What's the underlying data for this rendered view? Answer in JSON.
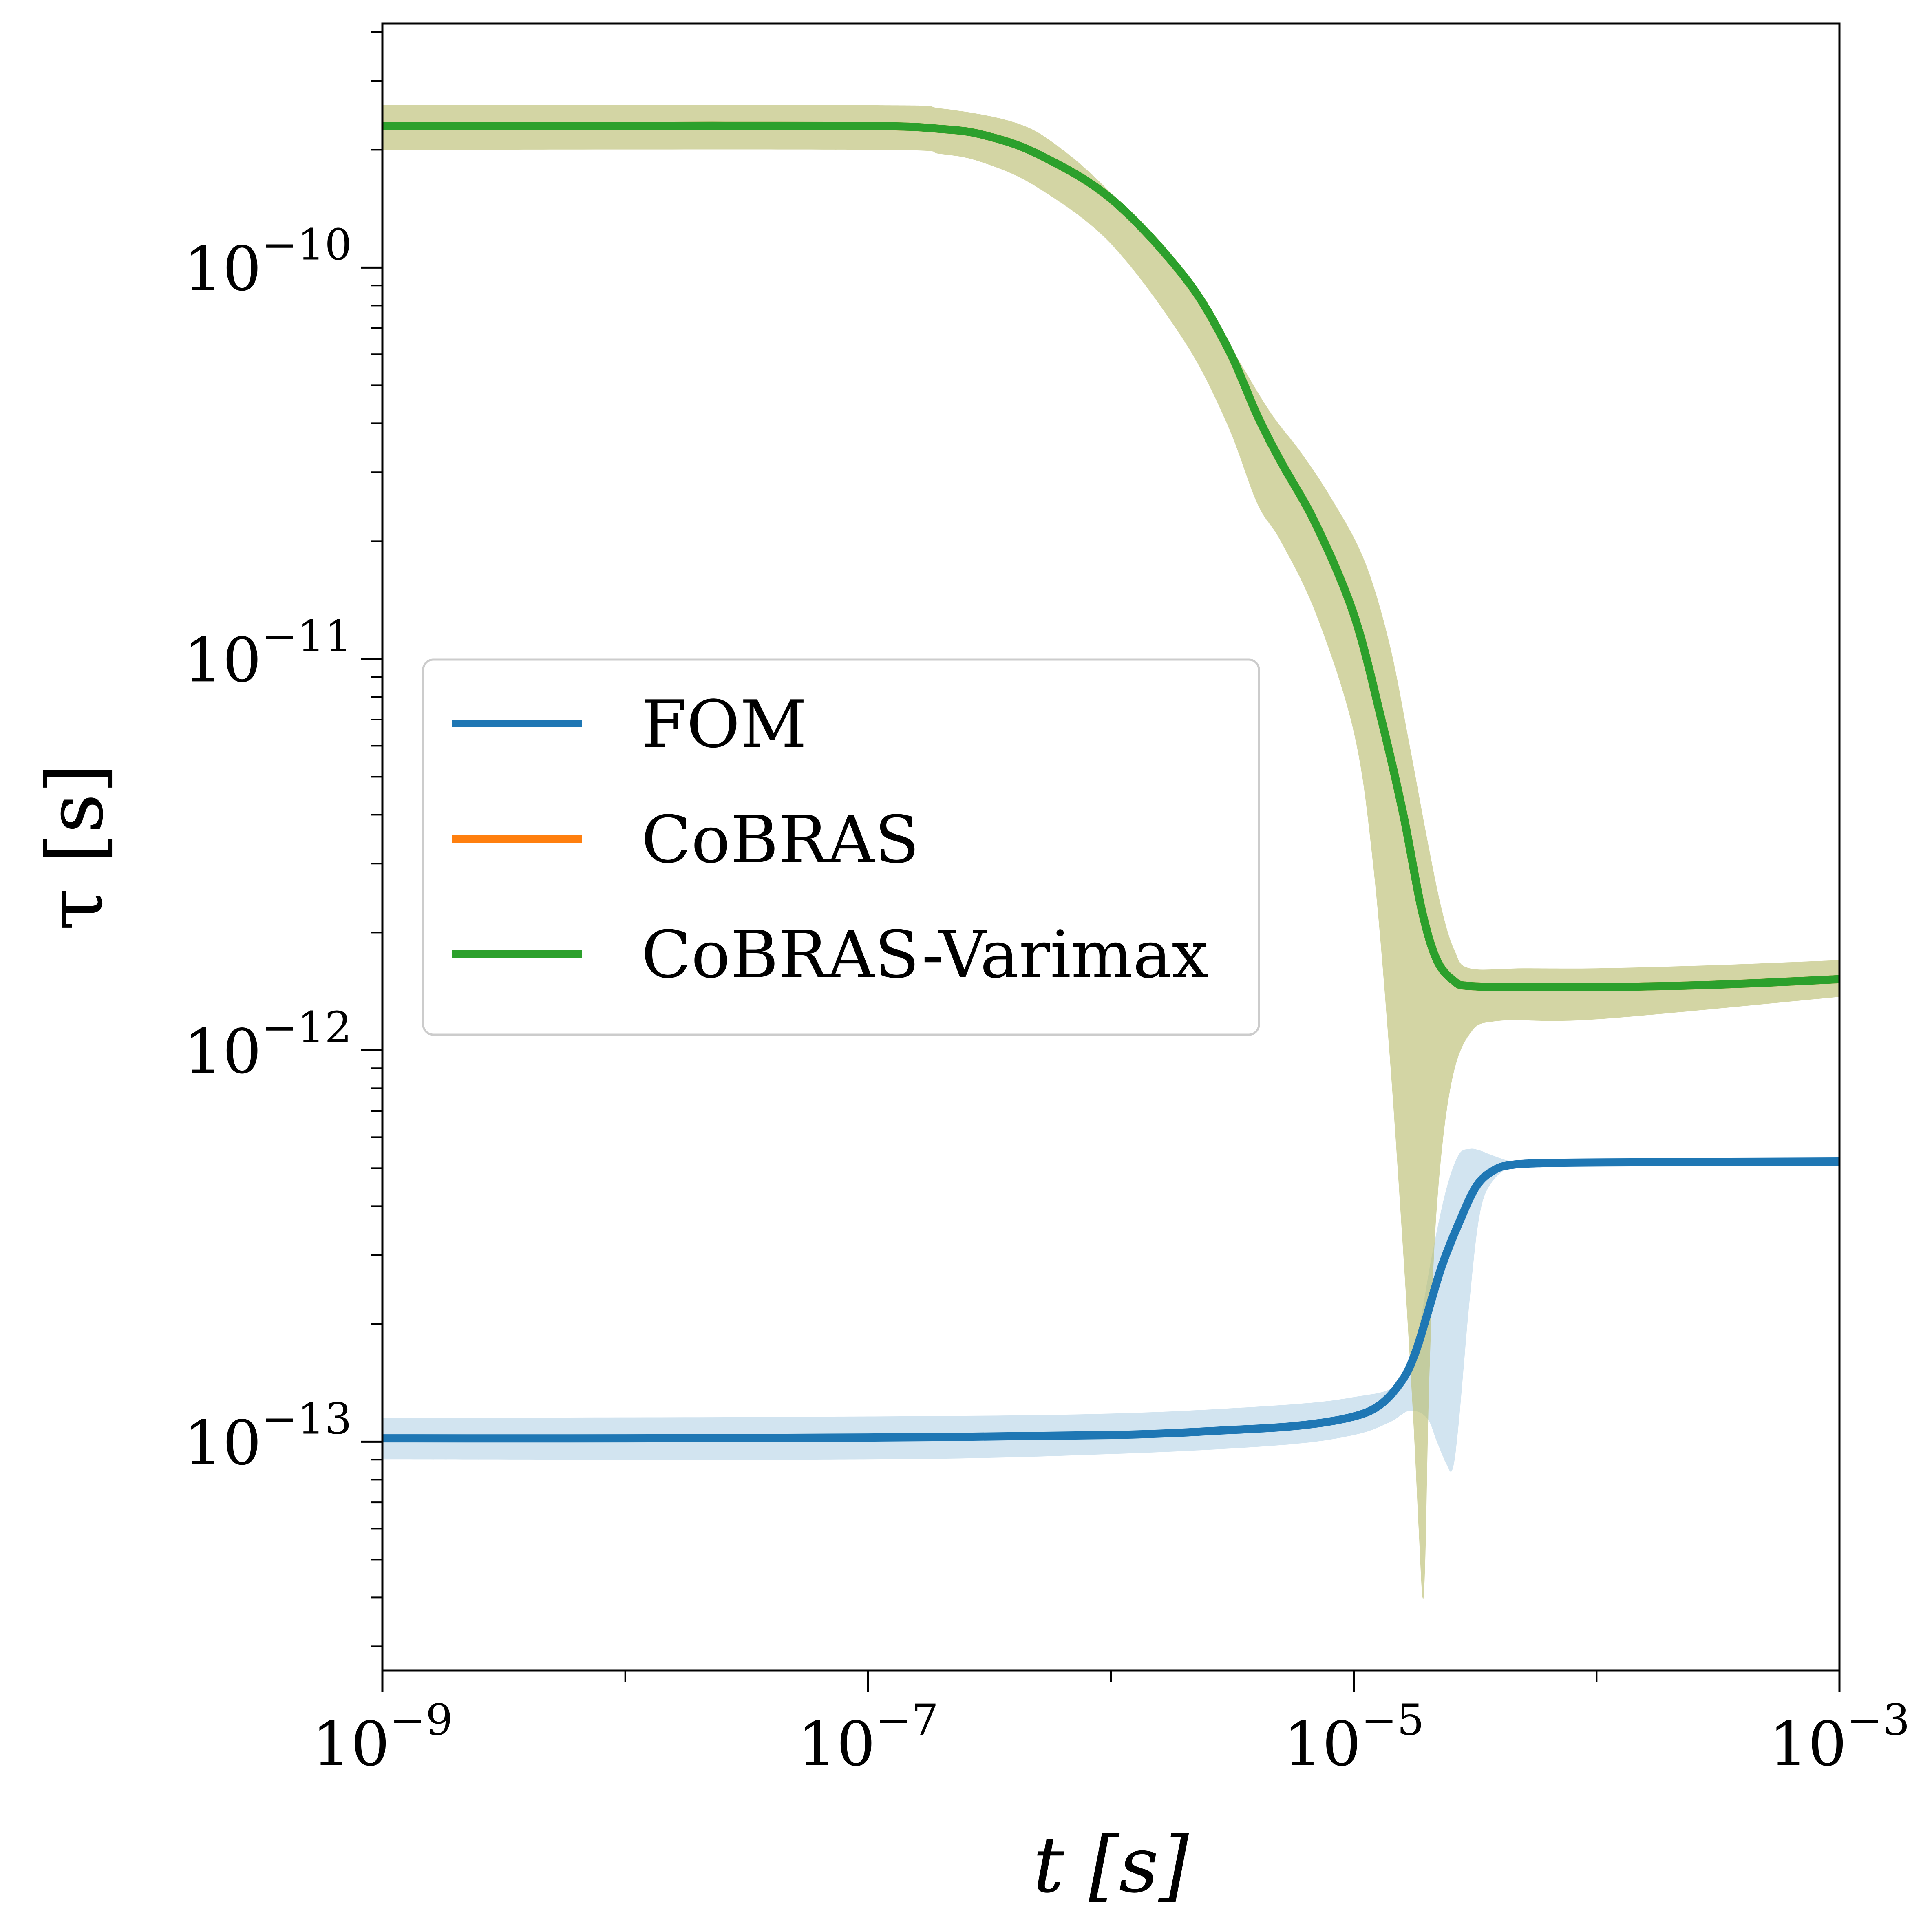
{
  "chart_data": {
    "type": "line",
    "title": "",
    "xlabel": "t [s]",
    "ylabel": "τ [s]",
    "xscale": "log",
    "yscale": "log",
    "xlim": [
      1e-09,
      0.001
    ],
    "ylim": [
      2.6e-14,
      4.2e-10
    ],
    "x_ticks": [
      {
        "value": 1e-09,
        "mantissa": "10",
        "exp": "−9"
      },
      {
        "value": 1e-07,
        "mantissa": "10",
        "exp": "−7"
      },
      {
        "value": 1e-05,
        "mantissa": "10",
        "exp": "−5"
      },
      {
        "value": 0.001,
        "mantissa": "10",
        "exp": "−3"
      }
    ],
    "y_ticks": [
      {
        "value": 1e-13,
        "mantissa": "10",
        "exp": "−13"
      },
      {
        "value": 1e-12,
        "mantissa": "10",
        "exp": "−12"
      },
      {
        "value": 1e-11,
        "mantissa": "10",
        "exp": "−11"
      },
      {
        "value": 1e-10,
        "mantissa": "10",
        "exp": "−10"
      }
    ],
    "grid": false,
    "legend": "center-left",
    "series": [
      {
        "name": "FOM",
        "color": "#1f77b4",
        "points": [
          [
            1e-09,
            1.02e-13
          ],
          [
            1e-08,
            1.02e-13
          ],
          [
            1e-07,
            1.025e-13
          ],
          [
            1e-06,
            1.04e-13
          ],
          [
            3e-06,
            1.07e-13
          ],
          [
            6e-06,
            1.1e-13
          ],
          [
            1e-05,
            1.16e-13
          ],
          [
            1.3e-05,
            1.25e-13
          ],
          [
            1.6e-05,
            1.45e-13
          ],
          [
            1.8e-05,
            1.7e-13
          ],
          [
            2e-05,
            2.1e-13
          ],
          [
            2.3e-05,
            2.8e-13
          ],
          [
            2.7e-05,
            3.6e-13
          ],
          [
            3.2e-05,
            4.5e-13
          ],
          [
            3.8e-05,
            4.95e-13
          ],
          [
            4.5e-05,
            5.1e-13
          ],
          [
            6e-05,
            5.15e-13
          ],
          [
            0.0001,
            5.17e-13
          ],
          [
            0.001,
            5.2e-13
          ]
        ],
        "band": {
          "color": "#1f77b4",
          "lower": [
            [
              1e-09,
              9e-14
            ],
            [
              1e-07,
              9e-14
            ],
            [
              1e-06,
              9.3e-14
            ],
            [
              5e-06,
              9.8e-14
            ],
            [
              1e-05,
              1.04e-13
            ],
            [
              1.4e-05,
              1.12e-13
            ],
            [
              1.7e-05,
              1.2e-13
            ],
            [
              2e-05,
              1.15e-13
            ],
            [
              2.2e-05,
              1e-13
            ],
            [
              2.4e-05,
              8.8e-14
            ],
            [
              2.55e-05,
              8.5e-14
            ],
            [
              2.7e-05,
              1.1e-13
            ],
            [
              3e-05,
              2.3e-13
            ],
            [
              3.3e-05,
              3.8e-13
            ],
            [
              3.7e-05,
              4.6e-13
            ],
            [
              4.5e-05,
              5.05e-13
            ],
            [
              6e-05,
              5.15e-13
            ]
          ],
          "upper": [
            [
              6e-05,
              5.15e-13
            ],
            [
              4.5e-05,
              5.2e-13
            ],
            [
              3.7e-05,
              5.4e-13
            ],
            [
              3.3e-05,
              5.55e-13
            ],
            [
              3e-05,
              5.6e-13
            ],
            [
              2.7e-05,
              5.4e-13
            ],
            [
              2.4e-05,
              4.4e-13
            ],
            [
              2.1e-05,
              3e-13
            ],
            [
              1.8e-05,
              1.8e-13
            ],
            [
              1.5e-05,
              1.4e-13
            ],
            [
              1e-05,
              1.3e-13
            ],
            [
              5e-06,
              1.24e-13
            ],
            [
              1e-06,
              1.18e-13
            ],
            [
              1e-07,
              1.16e-13
            ],
            [
              1e-09,
              1.15e-13
            ]
          ]
        }
      },
      {
        "name": "CoBRAS",
        "color": "#ff7f0e",
        "points": [
          [
            1e-09,
            2.3e-10
          ],
          [
            1e-08,
            2.3e-10
          ],
          [
            1e-07,
            2.3e-10
          ],
          [
            2e-07,
            2.26e-10
          ],
          [
            3e-07,
            2.18e-10
          ],
          [
            5e-07,
            1.95e-10
          ],
          [
            1e-06,
            1.5e-10
          ],
          [
            2e-06,
            9.5e-11
          ],
          [
            3e-06,
            6.3e-11
          ],
          [
            4e-06,
            4.2e-11
          ],
          [
            5e-06,
            3.2e-11
          ],
          [
            7e-06,
            2.2e-11
          ],
          [
            1e-05,
            1.3e-11
          ],
          [
            1.3e-05,
            7e-12
          ],
          [
            1.6e-05,
            4e-12
          ],
          [
            1.9e-05,
            2.3e-12
          ],
          [
            2.2e-05,
            1.7e-12
          ],
          [
            2.6e-05,
            1.5e-12
          ],
          [
            3e-05,
            1.46e-12
          ],
          [
            5e-05,
            1.45e-12
          ],
          [
            0.0001,
            1.45e-12
          ],
          [
            0.0003,
            1.47e-12
          ],
          [
            0.001,
            1.52e-12
          ]
        ]
      },
      {
        "name": "CoBRAS-Varimax",
        "color": "#2ca02c",
        "points": [
          [
            1e-09,
            2.3e-10
          ],
          [
            1e-08,
            2.3e-10
          ],
          [
            1e-07,
            2.3e-10
          ],
          [
            2e-07,
            2.26e-10
          ],
          [
            3e-07,
            2.18e-10
          ],
          [
            5e-07,
            1.95e-10
          ],
          [
            1e-06,
            1.5e-10
          ],
          [
            2e-06,
            9.5e-11
          ],
          [
            3e-06,
            6.3e-11
          ],
          [
            4e-06,
            4.2e-11
          ],
          [
            5e-06,
            3.2e-11
          ],
          [
            7e-06,
            2.2e-11
          ],
          [
            1e-05,
            1.3e-11
          ],
          [
            1.3e-05,
            7e-12
          ],
          [
            1.6e-05,
            4e-12
          ],
          [
            1.9e-05,
            2.3e-12
          ],
          [
            2.2e-05,
            1.7e-12
          ],
          [
            2.6e-05,
            1.5e-12
          ],
          [
            3e-05,
            1.46e-12
          ],
          [
            5e-05,
            1.45e-12
          ],
          [
            0.0001,
            1.45e-12
          ],
          [
            0.0003,
            1.47e-12
          ],
          [
            0.001,
            1.52e-12
          ]
        ],
        "band": {
          "color": "#bcbf73",
          "lower": [
            [
              1e-09,
              2e-10
            ],
            [
              1e-07,
              2e-10
            ],
            [
              2e-07,
              1.95e-10
            ],
            [
              3e-07,
              1.85e-10
            ],
            [
              5e-07,
              1.6e-10
            ],
            [
              1e-06,
              1.15e-10
            ],
            [
              2e-06,
              6.5e-11
            ],
            [
              3e-06,
              4e-11
            ],
            [
              4e-06,
              2.5e-11
            ],
            [
              5e-06,
              2e-11
            ],
            [
              7e-06,
              1.3e-11
            ],
            [
              1e-05,
              6.5e-12
            ],
            [
              1.2e-05,
              3e-12
            ],
            [
              1.4e-05,
              1e-12
            ],
            [
              1.6e-05,
              3e-13
            ],
            [
              1.75e-05,
              1.2e-13
            ],
            [
              1.85e-05,
              6e-14
            ],
            [
              1.92e-05,
              4e-14
            ],
            [
              1.97e-05,
              5e-14
            ],
            [
              2.05e-05,
              1.5e-13
            ],
            [
              2.2e-05,
              4e-13
            ],
            [
              2.5e-05,
              8e-13
            ],
            [
              3e-05,
              1.1e-12
            ],
            [
              4e-05,
              1.19e-12
            ],
            [
              0.0001,
              1.2e-12
            ],
            [
              0.001,
              1.37e-12
            ]
          ],
          "upper": [
            [
              0.001,
              1.7e-12
            ],
            [
              0.0003,
              1.65e-12
            ],
            [
              0.0001,
              1.62e-12
            ],
            [
              5e-05,
              1.62e-12
            ],
            [
              3e-05,
              1.62e-12
            ],
            [
              2.6e-05,
              1.8e-12
            ],
            [
              2.3e-05,
              2.3e-12
            ],
            [
              2e-05,
              3.5e-12
            ],
            [
              1.7e-05,
              6e-12
            ],
            [
              1.4e-05,
              1.1e-11
            ],
            [
              1.1e-05,
              1.8e-11
            ],
            [
              8e-06,
              2.6e-11
            ],
            [
              6e-06,
              3.4e-11
            ],
            [
              4.5e-06,
              4.3e-11
            ],
            [
              3e-06,
              6.5e-11
            ],
            [
              2e-06,
              9.5e-11
            ],
            [
              1e-06,
              1.55e-10
            ],
            [
              6e-07,
              2.05e-10
            ],
            [
              4e-07,
              2.35e-10
            ],
            [
              2e-07,
              2.55e-10
            ],
            [
              1e-07,
              2.6e-10
            ],
            [
              1e-09,
              2.6e-10
            ]
          ]
        }
      }
    ]
  }
}
